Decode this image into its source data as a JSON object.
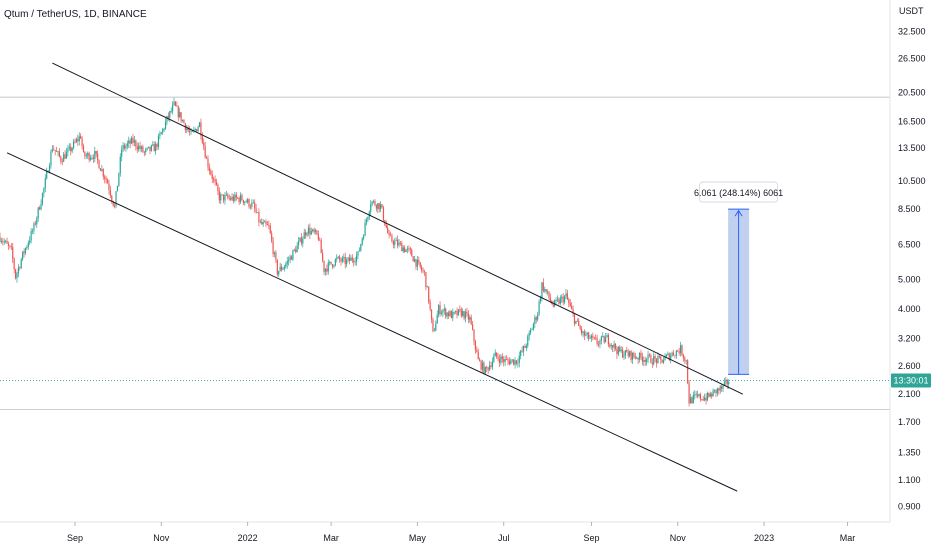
{
  "chart_data": {
    "type": "candlestick",
    "title": "Qtum / TetherUS, 1D, BINANCE",
    "y_unit": "USDT",
    "y_scale": "log",
    "y_range": [
      0.8,
      40
    ],
    "y_ticks": [
      "32.500",
      "26.500",
      "20.500",
      "16.500",
      "13.500",
      "10.500",
      "8.500",
      "6.500",
      "5.000",
      "4.000",
      "3.200",
      "2.600",
      "2.100",
      "1.700",
      "1.350",
      "1.100",
      "0.900"
    ],
    "x_range": [
      "2021-07-10",
      "2023-03-31"
    ],
    "x_ticks": [
      {
        "label": "Sep",
        "date": "2021-09-01"
      },
      {
        "label": "Nov",
        "date": "2021-11-01"
      },
      {
        "label": "2022",
        "date": "2022-01-01"
      },
      {
        "label": "Mar",
        "date": "2022-03-01"
      },
      {
        "label": "May",
        "date": "2022-05-01"
      },
      {
        "label": "Jul",
        "date": "2022-07-01"
      },
      {
        "label": "Sep",
        "date": "2022-09-01"
      },
      {
        "label": "Nov",
        "date": "2022-11-01"
      },
      {
        "label": "2023",
        "date": "2023-01-01"
      },
      {
        "label": "Mar",
        "date": "2023-03-01"
      }
    ],
    "price_path": [
      [
        "2021-07-10",
        6.9
      ],
      [
        "2021-07-18",
        6.2
      ],
      [
        "2021-07-21",
        5.1
      ],
      [
        "2021-07-26",
        6.0
      ],
      [
        "2021-08-03",
        7.4
      ],
      [
        "2021-08-10",
        9.9
      ],
      [
        "2021-08-16",
        13.6
      ],
      [
        "2021-08-22",
        12.4
      ],
      [
        "2021-08-28",
        13.2
      ],
      [
        "2021-09-05",
        14.8
      ],
      [
        "2021-09-07",
        12.7
      ],
      [
        "2021-09-15",
        12.8
      ],
      [
        "2021-09-24",
        10.4
      ],
      [
        "2021-09-29",
        8.6
      ],
      [
        "2021-10-04",
        13.4
      ],
      [
        "2021-10-12",
        14.2
      ],
      [
        "2021-10-20",
        13.0
      ],
      [
        "2021-10-28",
        13.6
      ],
      [
        "2021-11-05",
        16.7
      ],
      [
        "2021-11-10",
        18.6
      ],
      [
        "2021-11-15",
        16.9
      ],
      [
        "2021-11-22",
        14.8
      ],
      [
        "2021-11-28",
        16.2
      ],
      [
        "2021-12-03",
        12.3
      ],
      [
        "2021-12-06",
        11.2
      ],
      [
        "2021-12-12",
        9.3
      ],
      [
        "2021-12-20",
        9.2
      ],
      [
        "2021-12-28",
        9.2
      ],
      [
        "2022-01-05",
        8.7
      ],
      [
        "2022-01-10",
        7.6
      ],
      [
        "2022-01-16",
        7.4
      ],
      [
        "2022-01-22",
        5.3
      ],
      [
        "2022-01-28",
        5.6
      ],
      [
        "2022-02-05",
        6.4
      ],
      [
        "2022-02-12",
        7.3
      ],
      [
        "2022-02-20",
        6.9
      ],
      [
        "2022-02-24",
        5.4
      ],
      [
        "2022-03-05",
        5.8
      ],
      [
        "2022-03-12",
        5.7
      ],
      [
        "2022-03-20",
        6.0
      ],
      [
        "2022-03-29",
        9.0
      ],
      [
        "2022-04-05",
        8.7
      ],
      [
        "2022-04-11",
        6.8
      ],
      [
        "2022-04-20",
        6.4
      ],
      [
        "2022-04-26",
        6.1
      ],
      [
        "2022-05-01",
        5.6
      ],
      [
        "2022-05-06",
        5.2
      ],
      [
        "2022-05-09",
        4.3
      ],
      [
        "2022-05-12",
        3.3
      ],
      [
        "2022-05-16",
        4.0
      ],
      [
        "2022-05-26",
        3.8
      ],
      [
        "2022-06-01",
        3.9
      ],
      [
        "2022-06-07",
        3.7
      ],
      [
        "2022-06-13",
        2.7
      ],
      [
        "2022-06-18",
        2.5
      ],
      [
        "2022-06-25",
        2.8
      ],
      [
        "2022-07-02",
        2.7
      ],
      [
        "2022-07-10",
        2.7
      ],
      [
        "2022-07-16",
        3.0
      ],
      [
        "2022-07-25",
        3.9
      ],
      [
        "2022-07-28",
        4.8
      ],
      [
        "2022-08-05",
        4.1
      ],
      [
        "2022-08-14",
        4.4
      ],
      [
        "2022-08-20",
        3.7
      ],
      [
        "2022-08-26",
        3.3
      ],
      [
        "2022-09-05",
        3.1
      ],
      [
        "2022-09-12",
        3.2
      ],
      [
        "2022-09-20",
        2.9
      ],
      [
        "2022-10-01",
        2.8
      ],
      [
        "2022-10-10",
        2.75
      ],
      [
        "2022-10-20",
        2.7
      ],
      [
        "2022-10-28",
        2.85
      ],
      [
        "2022-11-03",
        2.95
      ],
      [
        "2022-11-07",
        2.7
      ],
      [
        "2022-11-09",
        2.0
      ],
      [
        "2022-11-14",
        2.05
      ],
      [
        "2022-11-22",
        2.05
      ],
      [
        "2022-11-28",
        2.15
      ],
      [
        "2022-12-03",
        2.2
      ],
      [
        "2022-12-07",
        2.33
      ]
    ],
    "current_price_label": "13:30:01",
    "current_price": 2.33,
    "upper_trendline": [
      [
        "2021-08-16",
        25.6
      ],
      [
        "2022-12-17",
        2.1
      ]
    ],
    "lower_trendline": [
      [
        "2021-07-15",
        13.0
      ],
      [
        "2022-12-13",
        1.01
      ]
    ],
    "horizontal_lines": [
      19.8,
      1.87,
      2.33
    ],
    "measure": {
      "label": "6.061 (248.14%) 6061",
      "date": "2022-12-14",
      "from": 2.44,
      "to": 8.5
    },
    "colors": {
      "up": "#26a69a",
      "down": "#ef5350",
      "line": "#131722",
      "measure_fill": "#b7c8ec",
      "measure_edge": "#2962ff",
      "price_label_bg": "#2ea596"
    }
  }
}
